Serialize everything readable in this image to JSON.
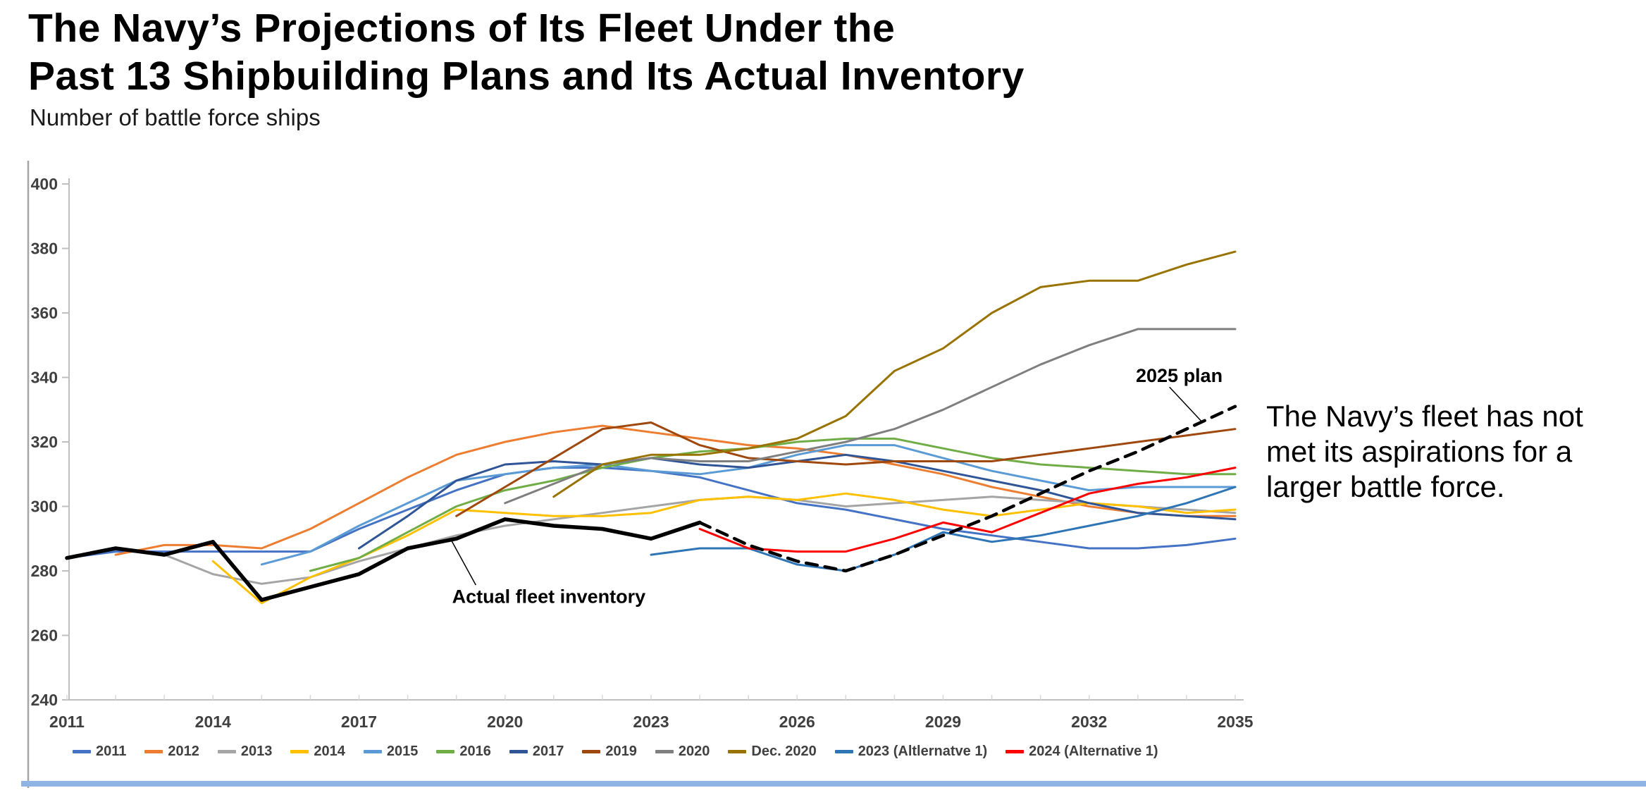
{
  "page": {
    "title_lines": [
      "The Navy’s Projections of Its Fleet Under the",
      "Past 13 Shipbuilding Plans and Its Actual Inventory"
    ],
    "subtitle": "Number of battle force ships",
    "side_note_lines": [
      "The Navy’s fleet has not",
      "met its aspirations for a",
      "larger battle force."
    ]
  },
  "chart_data": {
    "type": "line",
    "title": "The Navy’s Projections of Its Fleet Under the Past 13 Shipbuilding Plans and Its Actual Inventory",
    "ylabel": "Number of battle force ships",
    "xlabel": "",
    "grid": false,
    "legend_position": "bottom",
    "x_axis": {
      "min": 2011,
      "max": 2035,
      "label_ticks": [
        2011,
        2014,
        2017,
        2020,
        2023,
        2026,
        2029,
        2032,
        2035
      ]
    },
    "y_axis": {
      "min": 240,
      "max": 400,
      "ticks": [
        240,
        260,
        280,
        300,
        320,
        340,
        360,
        380,
        400
      ]
    },
    "axis_tick_color": "#BFBFBF",
    "axis_label_color": "#404040",
    "series": [
      {
        "name": "2011",
        "color": "#4472C4",
        "width": 3,
        "dash": null,
        "start": 2011,
        "values": [
          284,
          286,
          286,
          286,
          286,
          286,
          293,
          299,
          305,
          310,
          312,
          312,
          311,
          309,
          305,
          301,
          299,
          296,
          293,
          291,
          289,
          287,
          287,
          288,
          290
        ]
      },
      {
        "name": "2012",
        "color": "#ED7D31",
        "width": 3,
        "dash": null,
        "start": 2012,
        "values": [
          285,
          288,
          288,
          287,
          293,
          301,
          309,
          316,
          320,
          323,
          325,
          323,
          321,
          319,
          318,
          316,
          313,
          310,
          306,
          303,
          300,
          298,
          297,
          297
        ]
      },
      {
        "name": "2013",
        "color": "#A5A5A5",
        "width": 3,
        "dash": null,
        "start": 2013,
        "values": [
          285,
          279,
          276,
          278,
          283,
          287,
          291,
          294,
          296,
          298,
          300,
          302,
          303,
          302,
          300,
          301,
          302,
          303,
          302,
          301,
          300,
          299,
          298
        ]
      },
      {
        "name": "2014",
        "color": "#FFC000",
        "width": 3,
        "dash": null,
        "start": 2014,
        "values": [
          283,
          270,
          278,
          284,
          291,
          299,
          298,
          297,
          297,
          298,
          302,
          303,
          302,
          304,
          302,
          299,
          297,
          299,
          301,
          300,
          298,
          299
        ]
      },
      {
        "name": "2015",
        "color": "#5B9BD5",
        "width": 3,
        "dash": null,
        "start": 2015,
        "values": [
          282,
          286,
          294,
          301,
          308,
          310,
          312,
          313,
          311,
          310,
          312,
          316,
          319,
          319,
          315,
          311,
          308,
          305,
          306,
          306,
          306
        ]
      },
      {
        "name": "2016",
        "color": "#70AD47",
        "width": 3,
        "dash": null,
        "start": 2016,
        "values": [
          280,
          284,
          292,
          300,
          305,
          308,
          312,
          315,
          317,
          318,
          320,
          321,
          321,
          318,
          315,
          313,
          312,
          311,
          310,
          310
        ]
      },
      {
        "name": "2017",
        "color": "#2F5597",
        "width": 3,
        "dash": null,
        "start": 2017,
        "values": [
          287,
          297,
          308,
          313,
          314,
          313,
          315,
          313,
          312,
          314,
          316,
          314,
          311,
          308,
          305,
          301,
          298,
          297,
          296
        ]
      },
      {
        "name": "2019",
        "color": "#9E480E",
        "width": 3,
        "dash": null,
        "start": 2019,
        "values": [
          297,
          306,
          315,
          324,
          326,
          319,
          315,
          314,
          313,
          314,
          314,
          314,
          316,
          318,
          320,
          322,
          324
        ]
      },
      {
        "name": "2020",
        "color": "#7F7F7F",
        "width": 3,
        "dash": null,
        "start": 2020,
        "values": [
          301,
          307,
          313,
          315,
          314,
          314,
          317,
          320,
          324,
          330,
          337,
          344,
          350,
          355,
          355,
          355
        ]
      },
      {
        "name": "Dec. 2020",
        "color": "#997300",
        "width": 3,
        "dash": null,
        "start": 2021,
        "values": [
          303,
          313,
          316,
          316,
          318,
          321,
          328,
          342,
          349,
          360,
          368,
          370,
          370,
          375,
          379
        ]
      },
      {
        "name": "2023 (Altlernatve 1)",
        "color": "#2E75B6",
        "width": 3,
        "dash": null,
        "start": 2023,
        "values": [
          285,
          287,
          287,
          282,
          280,
          285,
          292,
          289,
          291,
          294,
          297,
          301,
          306
        ]
      },
      {
        "name": "2024 (Alternative 1)",
        "color": "#FF0000",
        "width": 3,
        "dash": null,
        "start": 2024,
        "values": [
          293,
          287,
          286,
          286,
          290,
          295,
          292,
          298,
          304,
          307,
          309,
          312
        ]
      },
      {
        "name": "2025 plan",
        "color": "#000000",
        "width": 4.5,
        "dash": "16 11",
        "start": 2024,
        "values": [
          295,
          288,
          283,
          280,
          285,
          291,
          297,
          304,
          311,
          317,
          324,
          331
        ]
      },
      {
        "name": "Actual fleet inventory",
        "color": "#000000",
        "width": 5.5,
        "dash": null,
        "start": 2011,
        "values": [
          284,
          287,
          285,
          289,
          271,
          275,
          279,
          287,
          290,
          296,
          294,
          293,
          290,
          295
        ]
      }
    ],
    "annotations": [
      {
        "text": "2025 plan",
        "label_year": 2033.85,
        "label_value": 340.5,
        "line_from_year": 2033.65,
        "line_from_value": 337.0,
        "line_to_year": 2034.3,
        "line_to_value": 326.5
      },
      {
        "text": "Actual fleet inventory",
        "label_year": 2020.9,
        "label_value": 272.0,
        "line_from_year": 2019.4,
        "line_from_value": 275.6,
        "line_to_year": 2018.9,
        "line_to_value": 289.4
      }
    ],
    "legend": [
      {
        "label": "2011",
        "color": "#4472C4"
      },
      {
        "label": "2012",
        "color": "#ED7D31"
      },
      {
        "label": "2013",
        "color": "#A5A5A5"
      },
      {
        "label": "2014",
        "color": "#FFC000"
      },
      {
        "label": "2015",
        "color": "#5B9BD5"
      },
      {
        "label": "2016",
        "color": "#70AD47"
      },
      {
        "label": "2017",
        "color": "#2F5597"
      },
      {
        "label": "2019",
        "color": "#9E480E"
      },
      {
        "label": "2020",
        "color": "#7F7F7F"
      },
      {
        "label": "Dec. 2020",
        "color": "#997300"
      },
      {
        "label": "2023 (Altlernatve 1)",
        "color": "#2E75B6"
      },
      {
        "label": "2024 (Alternative 1)",
        "color": "#FF0000"
      }
    ]
  }
}
